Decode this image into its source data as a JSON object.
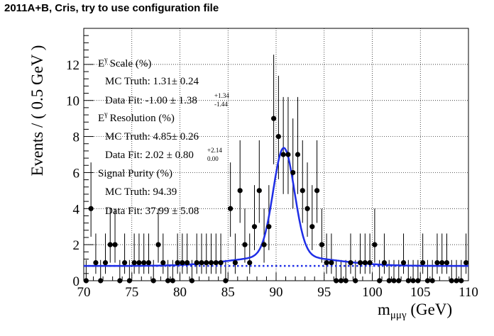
{
  "title": "2011A+B, Cris, try to use configuration file",
  "chart_data": {
    "type": "scatter",
    "xlabel": "m",
    "xlabel_sub": "μμγ",
    "xlabel_unit": " (GeV)",
    "ylabel": "Events / ( 0.5 GeV )",
    "xlim": [
      70,
      110
    ],
    "ylim": [
      0,
      14
    ],
    "x_ticks": [
      "70",
      "75",
      "80",
      "85",
      "90",
      "95",
      "100",
      "105",
      "110"
    ],
    "y_ticks": [
      "0",
      "2",
      "4",
      "6",
      "8",
      "10",
      "12"
    ],
    "grid": true,
    "series": [
      {
        "style": "points with error bars",
        "color": "#000000",
        "x": [
          70.25,
          70.75,
          71.25,
          71.75,
          72.25,
          72.75,
          73.25,
          73.75,
          74.25,
          74.75,
          75.25,
          75.75,
          76.25,
          76.75,
          77.25,
          77.75,
          78.25,
          78.75,
          79.25,
          79.75,
          80.25,
          80.75,
          81.25,
          81.75,
          82.25,
          82.75,
          83.25,
          83.75,
          84.25,
          84.75,
          85.25,
          85.75,
          86.25,
          86.75,
          87.25,
          87.75,
          88.25,
          88.75,
          89.25,
          89.75,
          90.25,
          90.75,
          91.25,
          91.75,
          92.25,
          92.75,
          93.25,
          93.75,
          94.25,
          94.75,
          95.25,
          95.75,
          96.25,
          96.75,
          97.25,
          97.75,
          98.25,
          98.75,
          99.25,
          99.75,
          100.25,
          100.75,
          101.25,
          101.75,
          102.25,
          102.75,
          103.25,
          103.75,
          104.25,
          104.75,
          105.25,
          105.75,
          106.25,
          106.75,
          107.25,
          107.75,
          108.25,
          108.75,
          109.25,
          109.75
        ],
        "y": [
          0,
          4,
          1,
          0,
          1,
          2,
          2,
          0,
          1,
          0,
          1,
          1,
          1,
          1,
          0,
          2,
          1,
          0,
          0,
          1,
          1,
          1,
          0,
          1,
          1,
          1,
          1,
          1,
          1,
          0,
          4,
          1,
          5,
          2,
          1,
          3,
          5,
          2,
          3,
          9,
          8,
          7,
          7,
          6,
          7,
          5,
          4,
          3,
          5,
          2,
          1,
          1,
          0,
          0,
          0,
          1,
          0,
          1,
          1,
          1,
          2,
          0,
          1,
          0,
          0,
          0,
          1,
          0,
          0,
          0,
          1,
          0,
          0,
          1,
          1,
          1,
          0,
          0,
          0,
          1
        ]
      },
      {
        "style": "solid line",
        "color": "#1f2ee6",
        "description": "total fit"
      },
      {
        "style": "dotted line",
        "color": "#1f2ee6",
        "description": "background component",
        "level": 0.82
      }
    ],
    "annotations": {
      "scale_title": "Scale (%)",
      "mc_truth_1": "MC Truth: 1.31± 0.24",
      "data_fit_1": "Data Fit: -1.00 ± 1.38",
      "data_fit_1_up": "+1.34",
      "data_fit_1_down": "-1.44",
      "resolution_title": "Resolution (%)",
      "mc_truth_2": "MC Truth: 4.85± 0.26",
      "data_fit_2": "Data Fit: 2.02 ± 0.80",
      "data_fit_2_up": "+2.14",
      "data_fit_2_down": "0.00",
      "purity_title": "Signal Purity (%)",
      "mc_truth_3": "MC Truth: 94.39",
      "data_fit_3": "Data Fit: 37.99 ± 5.08",
      "e_symbol": "E",
      "gamma_sup": "γ"
    },
    "fit": {
      "background_level": 0.82,
      "signal_peak_x": 90.8,
      "signal_peak_height": 6.0,
      "signal_sigma": 1.1,
      "tail_amplitude": 0.55,
      "tail_sigma": 5.0
    }
  }
}
